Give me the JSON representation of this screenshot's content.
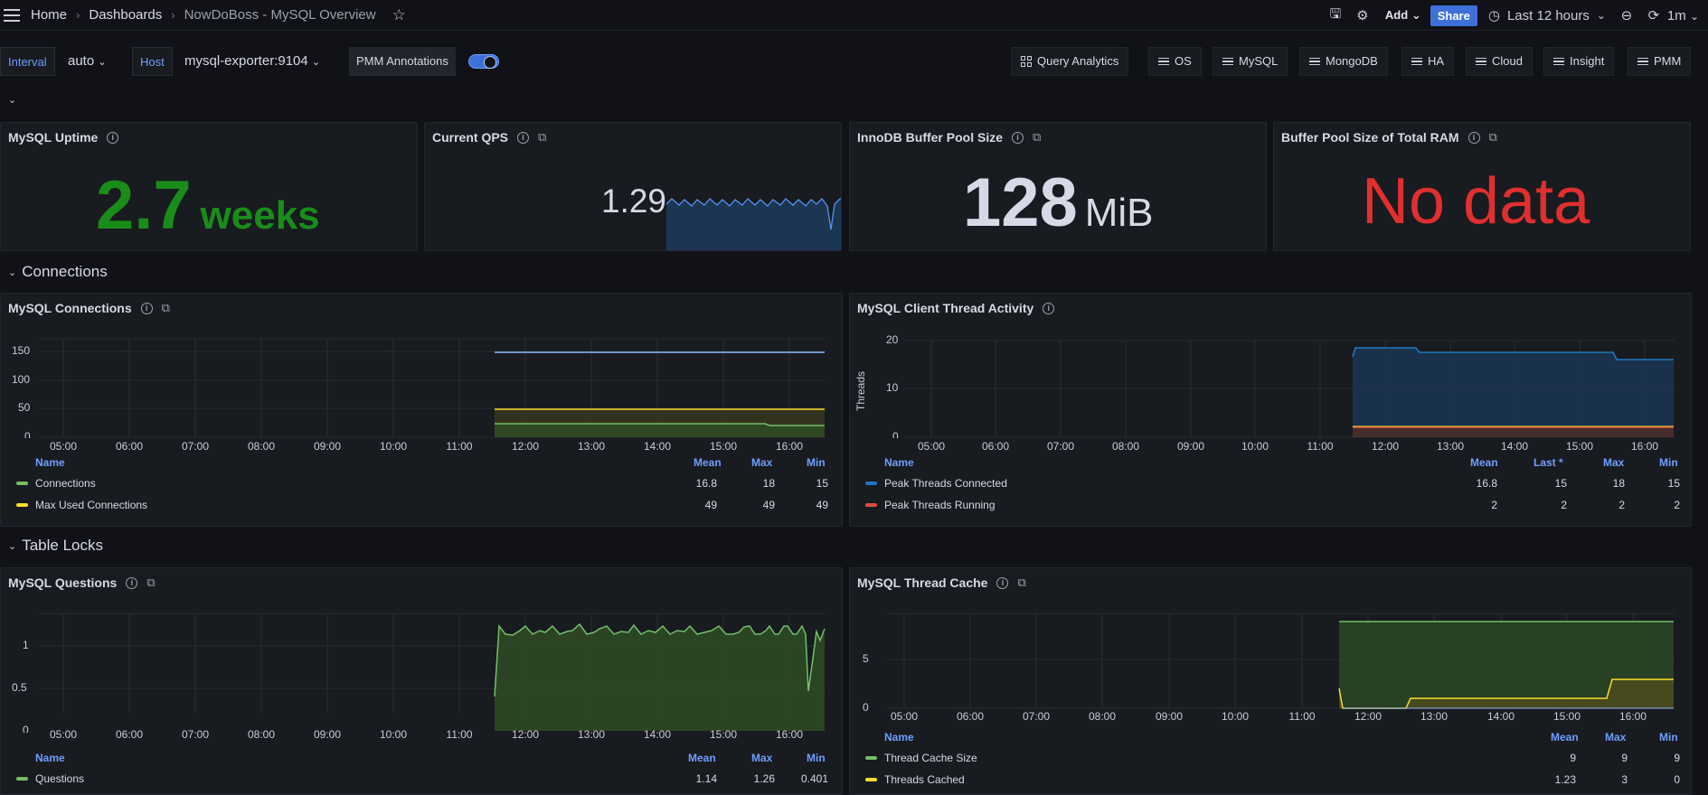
{
  "nav": {
    "breadcrumbs": [
      "Home",
      "Dashboards",
      "NowDoBoss - MySQL Overview"
    ],
    "add_label": "Add",
    "share_label": "Share",
    "time_range": "Last 12 hours",
    "refresh_interval": "1m"
  },
  "variables": {
    "interval_label": "Interval",
    "interval_value": "auto",
    "host_label": "Host",
    "host_value": "mysql-exporter:9104",
    "annotations_label": "PMM Annotations",
    "annotations_enabled": true
  },
  "links": [
    {
      "label": "Query Analytics",
      "icon": "apps-icon"
    },
    {
      "label": "OS",
      "icon": "bars-icon"
    },
    {
      "label": "MySQL",
      "icon": "bars-icon"
    },
    {
      "label": "MongoDB",
      "icon": "bars-icon"
    },
    {
      "label": "HA",
      "icon": "bars-icon"
    },
    {
      "label": "Cloud",
      "icon": "bars-icon"
    },
    {
      "label": "Insight",
      "icon": "bars-icon"
    },
    {
      "label": "PMM",
      "icon": "bars-icon"
    }
  ],
  "stats": {
    "uptime": {
      "title": "MySQL Uptime",
      "value": "2.7",
      "unit": "weeks",
      "color": "#1a8c1a"
    },
    "qps": {
      "title": "Current QPS",
      "value": "1.29",
      "color": "#5794f2"
    },
    "buffer_pool": {
      "title": "InnoDB Buffer Pool Size",
      "value": "128",
      "unit": "MiB",
      "color": "#d8d9e6"
    },
    "buffer_ram": {
      "title": "Buffer Pool Size of Total RAM",
      "value": "No data",
      "color": "#e02f2f"
    }
  },
  "rows": {
    "connections": "Connections",
    "table_locks": "Table Locks"
  },
  "time_ticks": [
    "05:00",
    "06:00",
    "07:00",
    "08:00",
    "09:00",
    "10:00",
    "11:00",
    "12:00",
    "13:00",
    "14:00",
    "15:00",
    "16:00"
  ],
  "panels": {
    "connections": {
      "title": "MySQL Connections",
      "y_ticks": [
        "150",
        "100",
        "50",
        "0"
      ],
      "legend_headers": [
        "Name",
        "Mean",
        "Max",
        "Min"
      ],
      "series": [
        {
          "name": "Connections",
          "color": "#73bf69",
          "values": [
            "16.8",
            "18",
            "15"
          ]
        },
        {
          "name": "Max Used Connections",
          "color": "#fade2a",
          "values": [
            "49",
            "49",
            "49"
          ]
        }
      ]
    },
    "threads": {
      "title": "MySQL Client Thread Activity",
      "y_label": "Threads",
      "y_ticks": [
        "20",
        "10",
        "0"
      ],
      "legend_headers": [
        "Name",
        "Mean",
        "Last *",
        "Max",
        "Min"
      ],
      "series": [
        {
          "name": "Peak Threads Connected",
          "color": "#1f78c1",
          "values": [
            "16.8",
            "15",
            "18",
            "15"
          ]
        },
        {
          "name": "Peak Threads Running",
          "color": "#e24d42",
          "values": [
            "2",
            "2",
            "2",
            "2"
          ]
        }
      ]
    },
    "questions": {
      "title": "MySQL Questions",
      "y_ticks": [
        "1",
        "0.5",
        "0"
      ],
      "legend_headers": [
        "Name",
        "Mean",
        "Max",
        "Min"
      ],
      "series": [
        {
          "name": "Questions",
          "color": "#73bf69",
          "values": [
            "1.14",
            "1.26",
            "0.401"
          ]
        }
      ]
    },
    "thread_cache": {
      "title": "MySQL Thread Cache",
      "y_ticks": [
        "5",
        "0"
      ],
      "legend_headers": [
        "Name",
        "Mean",
        "Max",
        "Min"
      ],
      "series": [
        {
          "name": "Thread Cache Size",
          "color": "#73bf69",
          "values": [
            "9",
            "9",
            "9"
          ]
        },
        {
          "name": "Threads Cached",
          "color": "#fade2a",
          "values": [
            "1.23",
            "3",
            "0"
          ]
        }
      ]
    }
  }
}
